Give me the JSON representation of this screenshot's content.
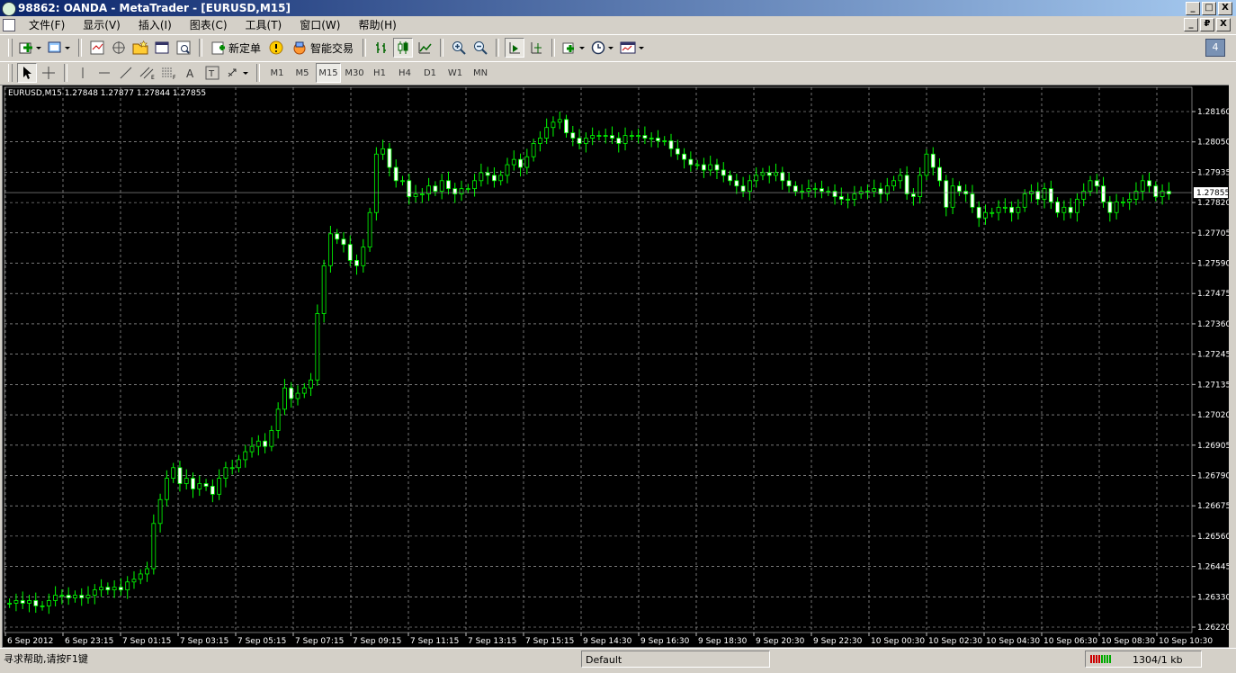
{
  "window": {
    "title": "98862: OANDA - MetaTrader - [EURUSD,M15]",
    "buttons": [
      "_",
      "□",
      "X"
    ]
  },
  "menu": {
    "items": [
      "文件(F)",
      "显示(V)",
      "插入(I)",
      "图表(C)",
      "工具(T)",
      "窗口(W)",
      "帮助(H)"
    ],
    "mdi_buttons": [
      "_",
      "₽",
      "X"
    ]
  },
  "toolbar": {
    "new_order_label": "新定单",
    "expert_label": "智能交易",
    "badge": "4"
  },
  "timeframes": {
    "items": [
      "M1",
      "M5",
      "M15",
      "M30",
      "H1",
      "H4",
      "D1",
      "W1",
      "MN"
    ],
    "active": "M15"
  },
  "chart": {
    "label": "EURUSD,M15  1.27848 1.27877 1.27844 1.27855",
    "symbol": "EURUSD",
    "timeframe": "M15",
    "ohlc": {
      "open": "1.27848",
      "high": "1.27877",
      "low": "1.27844",
      "close": "1.27855"
    },
    "current_price_label": "1.27855",
    "colors": {
      "background": "#000000",
      "grid": "#c0c0c0",
      "bull": "#00ff00",
      "bear": "#ffffff",
      "text": "#ffffff"
    }
  },
  "chart_data": {
    "type": "candlestick",
    "y_ticks": [
      "1.28160",
      "1.28050",
      "1.27935",
      "1.27820",
      "1.27705",
      "1.27590",
      "1.27475",
      "1.27360",
      "1.27245",
      "1.27135",
      "1.27020",
      "1.26905",
      "1.26790",
      "1.26675",
      "1.26560",
      "1.26445",
      "1.26330",
      "1.26220"
    ],
    "ylim": [
      1.2622,
      1.2816
    ],
    "x_ticks": [
      "6 Sep 2012",
      "6 Sep 23:15",
      "7 Sep 01:15",
      "7 Sep 03:15",
      "7 Sep 05:15",
      "7 Sep 07:15",
      "7 Sep 09:15",
      "7 Sep 11:15",
      "7 Sep 13:15",
      "7 Sep 15:15",
      "9 Sep 14:30",
      "9 Sep 16:30",
      "9 Sep 18:30",
      "9 Sep 20:30",
      "9 Sep 22:30",
      "10 Sep 00:30",
      "10 Sep 02:30",
      "10 Sep 04:30",
      "10 Sep 06:30",
      "10 Sep 08:30",
      "10 Sep 10:30"
    ],
    "close_path": [
      1.2631,
      1.2632,
      1.2631,
      1.2632,
      1.263,
      1.263,
      1.2632,
      1.2634,
      1.2634,
      1.2633,
      1.2634,
      1.2633,
      1.2634,
      1.2636,
      1.2637,
      1.2636,
      1.2637,
      1.2636,
      1.2639,
      1.264,
      1.2642,
      1.2644,
      1.2661,
      1.267,
      1.2678,
      1.2682,
      1.2676,
      1.2678,
      1.2674,
      1.2676,
      1.2675,
      1.2672,
      1.2678,
      1.2682,
      1.2682,
      1.2685,
      1.2688,
      1.269,
      1.2692,
      1.269,
      1.2696,
      1.2704,
      1.2712,
      1.2708,
      1.271,
      1.2712,
      1.2715,
      1.274,
      1.2758,
      1.277,
      1.2768,
      1.2766,
      1.276,
      1.2758,
      1.2765,
      1.2778,
      1.28,
      1.2802,
      1.2795,
      1.279,
      1.279,
      1.2784,
      1.2785,
      1.2785,
      1.2788,
      1.2786,
      1.279,
      1.2787,
      1.2785,
      1.2787,
      1.2787,
      1.279,
      1.2793,
      1.2792,
      1.279,
      1.2792,
      1.2796,
      1.2798,
      1.2795,
      1.2799,
      1.2804,
      1.2806,
      1.281,
      1.2812,
      1.2813,
      1.2808,
      1.2806,
      1.2804,
      1.2806,
      1.2807,
      1.2807,
      1.2807,
      1.2806,
      1.2804,
      1.2807,
      1.2807,
      1.2807,
      1.2806,
      1.2806,
      1.2805,
      1.2805,
      1.2802,
      1.28,
      1.2798,
      1.2796,
      1.2796,
      1.2794,
      1.2796,
      1.2794,
      1.2792,
      1.279,
      1.2788,
      1.2786,
      1.279,
      1.2792,
      1.2793,
      1.2792,
      1.2793,
      1.279,
      1.2788,
      1.2786,
      1.2786,
      1.2787,
      1.2787,
      1.2786,
      1.2786,
      1.2784,
      1.2783,
      1.2783,
      1.2785,
      1.2786,
      1.2786,
      1.2787,
      1.2785,
      1.2788,
      1.279,
      1.2792,
      1.2785,
      1.2784,
      1.2792,
      1.28,
      1.2795,
      1.279,
      1.278,
      1.2788,
      1.2786,
      1.2785,
      1.278,
      1.2776,
      1.2778,
      1.2778,
      1.278,
      1.278,
      1.2778,
      1.278,
      1.2785,
      1.2786,
      1.2783,
      1.2787,
      1.2782,
      1.2778,
      1.278,
      1.2778,
      1.2783,
      1.2786,
      1.279,
      1.2788,
      1.2782,
      1.2778,
      1.2782,
      1.2782,
      1.2783,
      1.2786,
      1.279,
      1.2788,
      1.2784,
      1.2786,
      1.2785
    ]
  },
  "status": {
    "help": "寻求帮助,请按F1键",
    "profile": "Default",
    "traffic": "1304/1 kb"
  }
}
